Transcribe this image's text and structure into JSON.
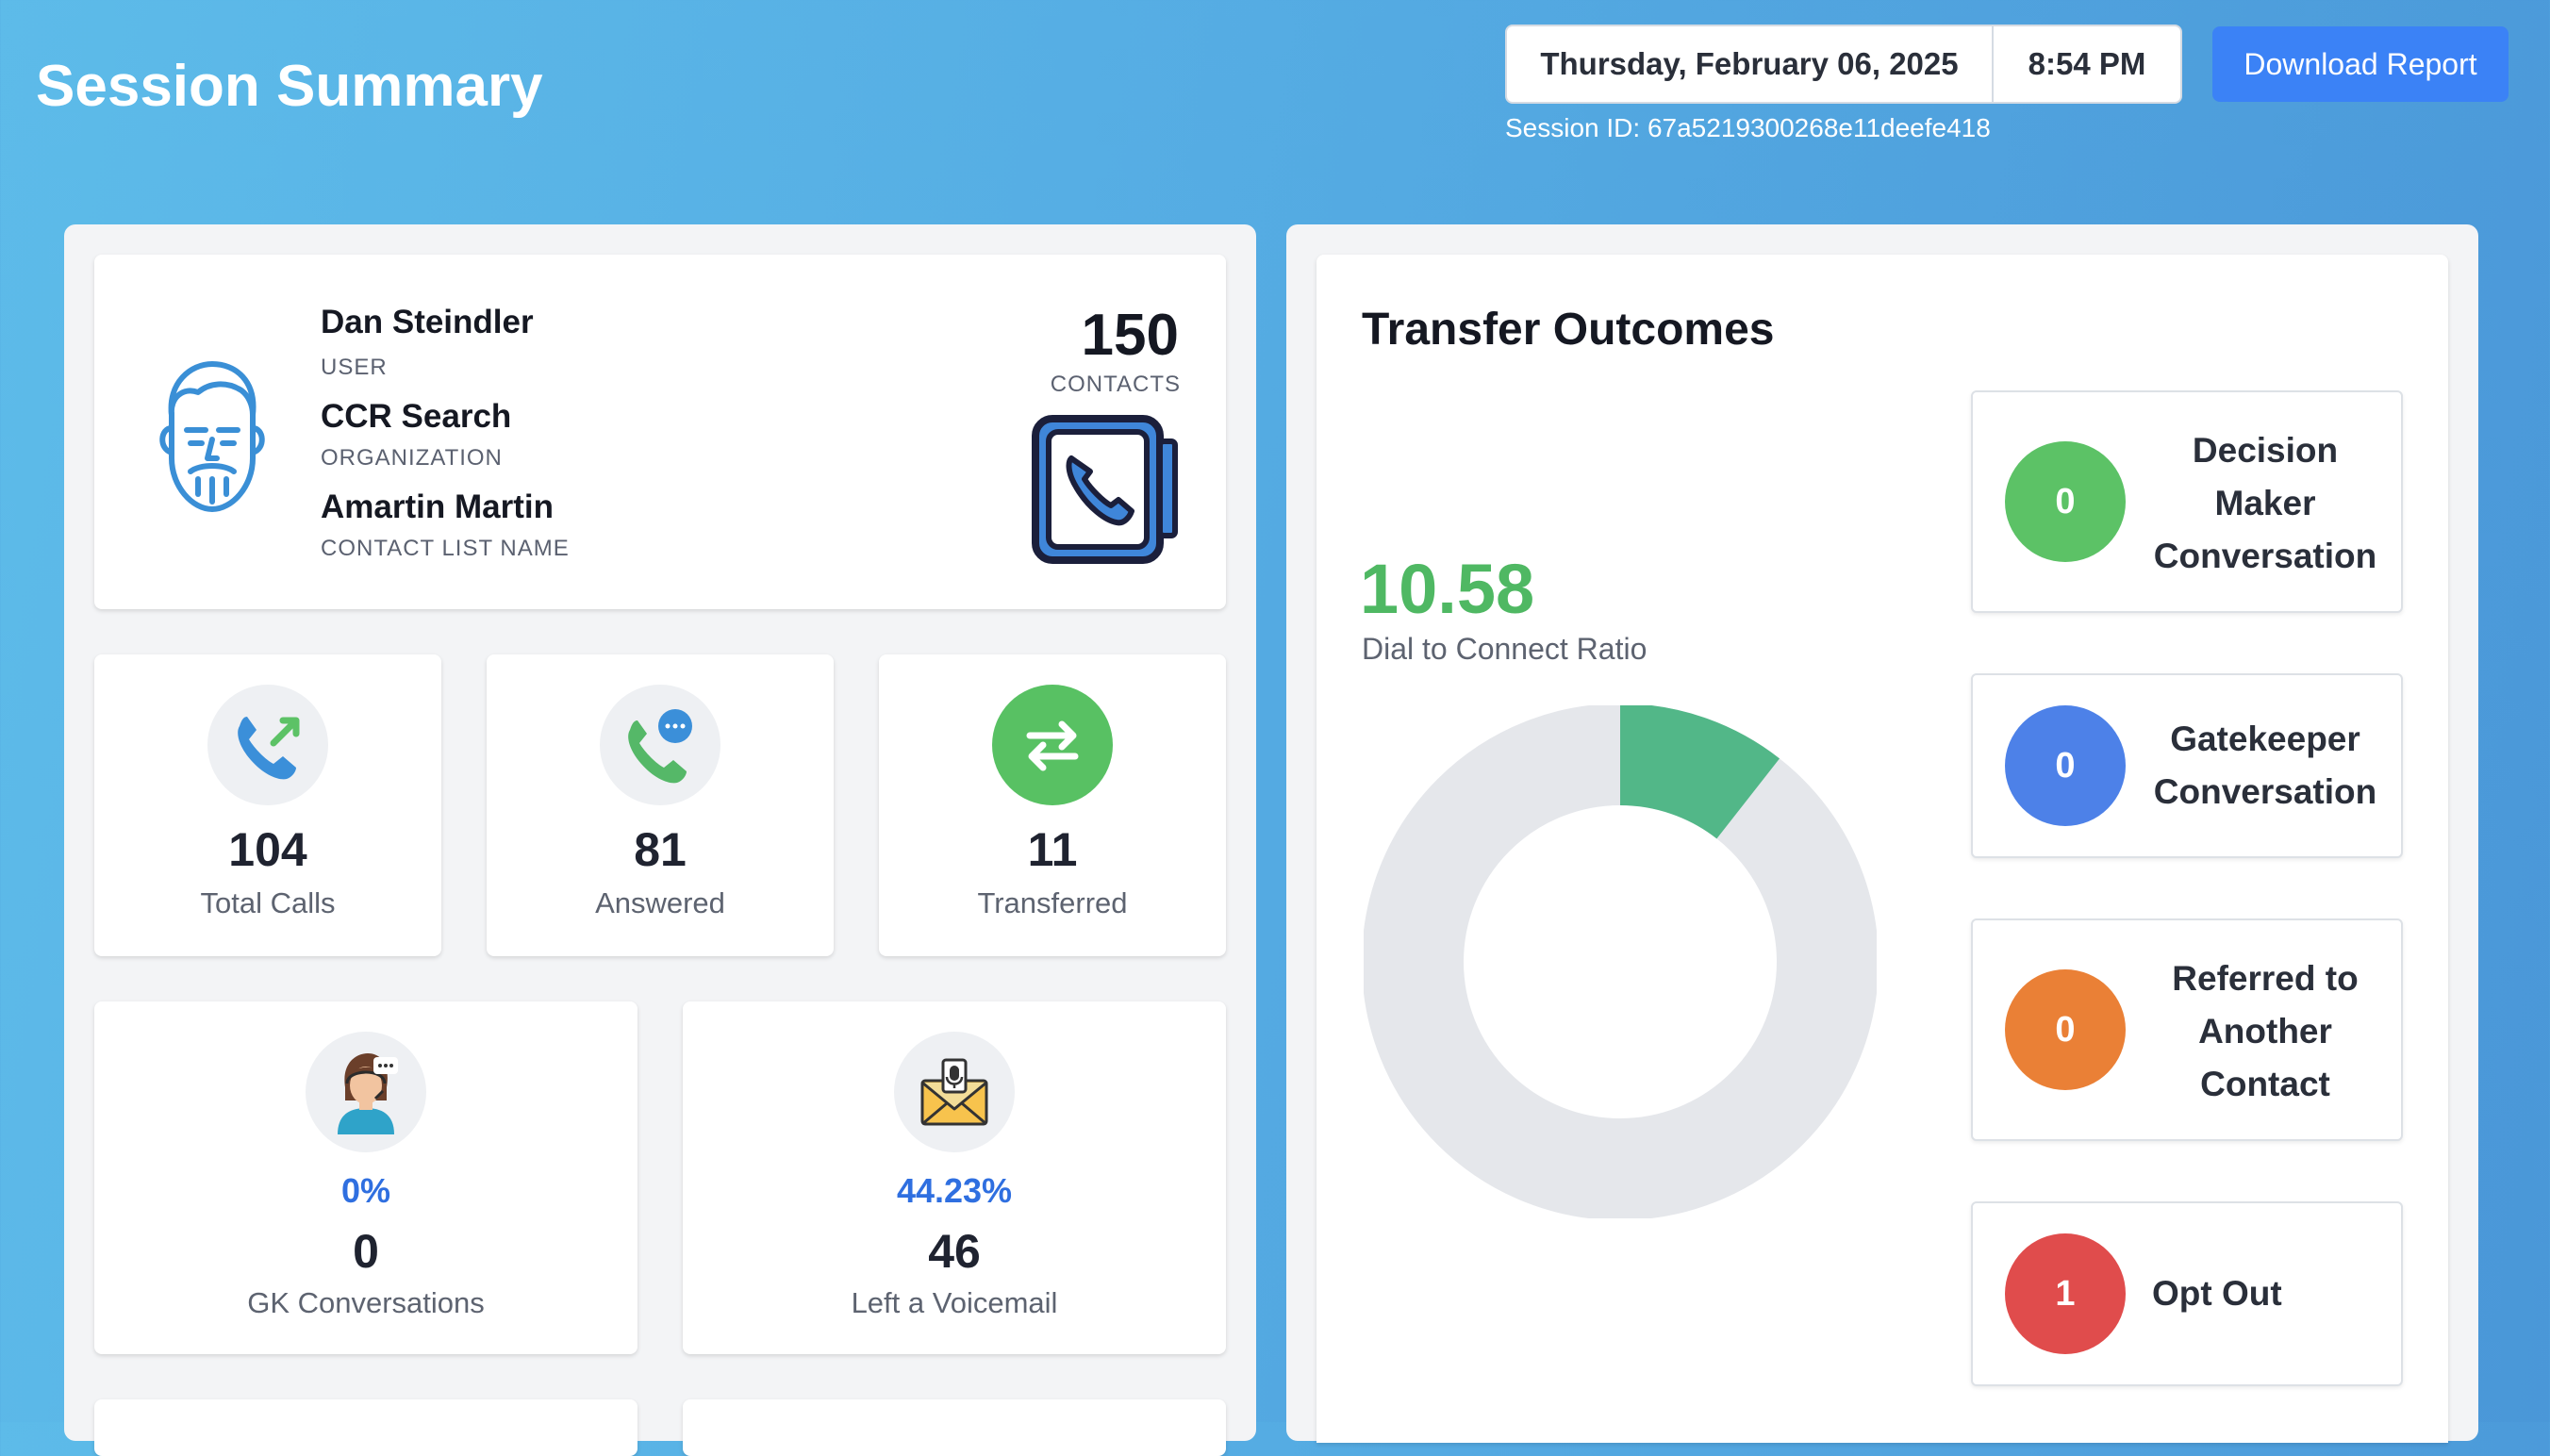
{
  "header": {
    "title": "Session Summary",
    "date": "Thursday, February 06, 2025",
    "time": "8:54 PM",
    "download_label": "Download Report",
    "session_id": "Session ID: 67a5219300268e11deefe418"
  },
  "profile": {
    "user_name": "Dan Steindler",
    "user_label": "USER",
    "org_name": "CCR Search",
    "org_label": "ORGANIZATION",
    "list_name": "Amartin Martin",
    "list_label": "CONTACT LIST NAME",
    "contacts_count": "150",
    "contacts_label": "CONTACTS",
    "icons": [
      "bearded-man-icon",
      "phone-book-icon"
    ]
  },
  "stats": [
    {
      "icon": "outgoing-call-icon",
      "value": "104",
      "label": "Total Calls"
    },
    {
      "icon": "call-chat-icon",
      "value": "81",
      "label": "Answered"
    },
    {
      "icon": "transfer-arrows-icon",
      "value": "11",
      "label": "Transferred"
    }
  ],
  "stats2": [
    {
      "icon": "operator-headset-icon",
      "percent": "0%",
      "value": "0",
      "label": "GK Conversations"
    },
    {
      "icon": "voicemail-envelope-icon",
      "percent": "44.23%",
      "value": "46",
      "label": "Left a Voicemail"
    }
  ],
  "transfer": {
    "title": "Transfer Outcomes",
    "ratio": "10.58",
    "ratio_label": "Dial to Connect Ratio",
    "donut": {
      "filled_fraction": 0.1058,
      "fill_color": "#52b788",
      "track_color": "#e5e7eb"
    },
    "outcomes": [
      {
        "count": "0",
        "label_lines": [
          "Decision",
          "Maker",
          "Conversation"
        ],
        "color": "#5cc266"
      },
      {
        "count": "0",
        "label_lines": [
          "Gatekeeper",
          "Conversation"
        ],
        "color": "#4d81e8"
      },
      {
        "count": "0",
        "label_lines": [
          "Referred to",
          "Another",
          "Contact"
        ],
        "color": "#ea8036"
      },
      {
        "count": "1",
        "label_lines": [
          "Opt Out"
        ],
        "color": "#e04c4c"
      }
    ]
  },
  "colors": {
    "accent": "#3b82f6",
    "ratio_green": "#4fb863",
    "percent_blue": "#2f6fe0"
  }
}
